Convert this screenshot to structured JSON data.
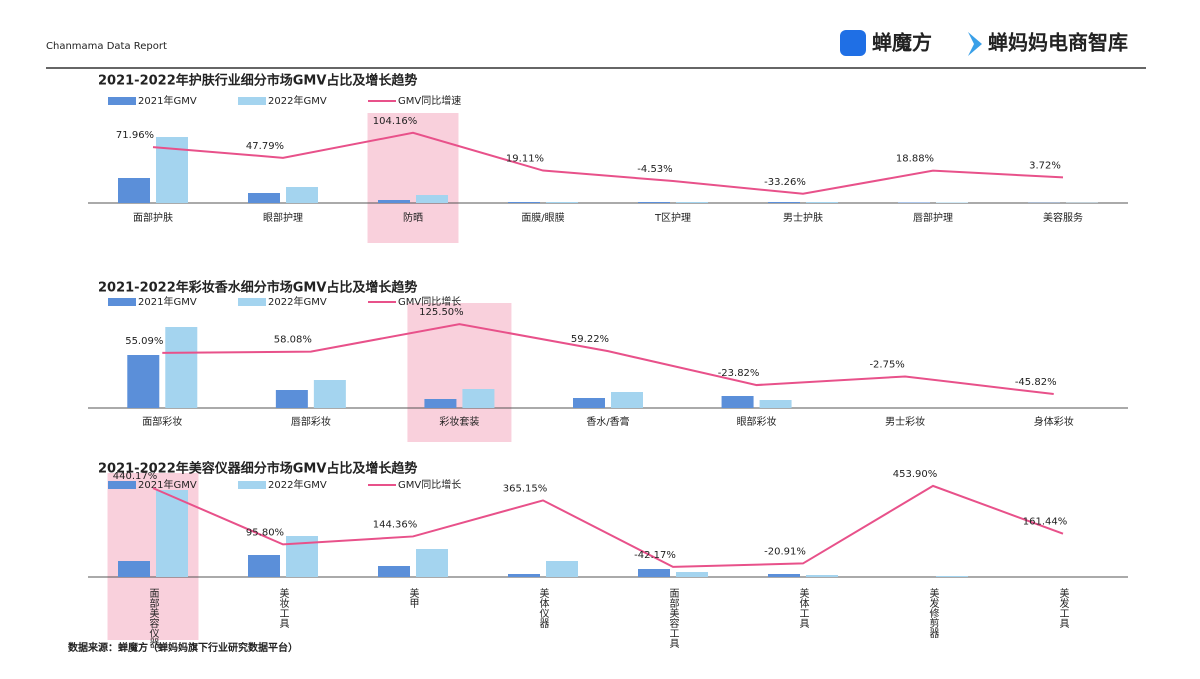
{
  "header": {
    "report": "Chanmama Data Report",
    "brand1": "蝉魔方",
    "brand2": "蝉妈妈电商智库"
  },
  "footer": "数据来源：蝉魔方（蝉妈妈旗下行业研究数据平台）",
  "chart_data": [
    {
      "type": "combo",
      "title": "2021-2022年护肤行业细分市场GMV占比及增长趋势",
      "categories": [
        "面部护肤",
        "眼部护理",
        "防晒",
        "面膜/眼膜",
        "T区护理",
        "男士护肤",
        "唇部护理",
        "美容服务"
      ],
      "highlight": "防晒",
      "ylim": [
        0,
        83
      ],
      "y2lim": [
        -54,
        133
      ],
      "series": [
        {
          "name": "2021年GMV",
          "type": "bar",
          "color": "#5b8fd9",
          "values": [
            25,
            10,
            3,
            1,
            1,
            1,
            0.5,
            0.3
          ]
        },
        {
          "name": "2022年GMV",
          "type": "bar",
          "color": "#a4d4ef",
          "values": [
            66,
            16,
            8,
            1,
            1,
            1,
            0.5,
            0.3
          ]
        },
        {
          "name": "GMV同比增速",
          "type": "line",
          "axis": "y2",
          "color": "#e8518a",
          "values": [
            71.96,
            47.79,
            104.16,
            19.11,
            -4.53,
            -33.26,
            18.88,
            3.72
          ],
          "value_labels": [
            "71.96%",
            "47.79%",
            "104.16%",
            "19.11%",
            "-4.53%",
            "-33.26%",
            "18.88%",
            "3.72%"
          ]
        }
      ]
    },
    {
      "type": "combo",
      "title": "2021-2022年彩妆香水细分市场GMV占比及增长趋势",
      "categories": [
        "面部彩妆",
        "唇部彩妆",
        "彩妆套装",
        "香水/香膏",
        "眼部彩妆",
        "男士彩妆",
        "身体彩妆"
      ],
      "highlight": "彩妆套装",
      "ylim": [
        0,
        98
      ],
      "y2lim": [
        -80,
        160
      ],
      "series": [
        {
          "name": "2021年GMV",
          "type": "bar",
          "color": "#5b8fd9",
          "values": [
            53,
            18,
            9,
            10,
            12,
            0,
            0
          ]
        },
        {
          "name": "2022年GMV",
          "type": "bar",
          "color": "#a4d4ef",
          "values": [
            81,
            28,
            19,
            16,
            8,
            0,
            0
          ]
        },
        {
          "name": "GMV同比增长",
          "type": "line",
          "axis": "y2",
          "color": "#e8518a",
          "values": [
            55.09,
            58.08,
            125.5,
            59.22,
            -23.82,
            -2.75,
            -45.82
          ],
          "value_labels": [
            "55.09%",
            "58.08%",
            "125.50%",
            "59.22%",
            "-23.82%",
            "-2.75%",
            "-45.82%"
          ]
        }
      ]
    },
    {
      "type": "combo",
      "title": "2021-2022年美容仪器细分市场GMV占比及增长趋势",
      "categories": [
        "面部美容仪器",
        "美妆工具",
        "美甲",
        "美体仪器",
        "面部美容工具",
        "美体工具",
        "美发修剪器",
        "美发工具"
      ],
      "highlight": "面部美容仪器",
      "vertical_labels": true,
      "ylim": [
        0,
        97
      ],
      "y2lim": [
        -104,
        490
      ],
      "series": [
        {
          "name": "2021年GMV",
          "type": "bar",
          "color": "#5b8fd9",
          "values": [
            16,
            22,
            11,
            3,
            8,
            3,
            0,
            0
          ]
        },
        {
          "name": "2022年GMV",
          "type": "bar",
          "color": "#a4d4ef",
          "values": [
            87,
            41,
            28,
            16,
            5,
            2,
            1,
            0
          ]
        },
        {
          "name": "GMV同比增长",
          "type": "line",
          "axis": "y2",
          "color": "#e8518a",
          "values": [
            440.17,
            95.8,
            144.36,
            365.15,
            -42.17,
            -20.91,
            453.9,
            161.44
          ],
          "value_labels": [
            "440.17%",
            "95.80%",
            "144.36%",
            "365.15%",
            "-42.17%",
            "-20.91%",
            "453.90%",
            "161.44%"
          ]
        }
      ]
    }
  ]
}
